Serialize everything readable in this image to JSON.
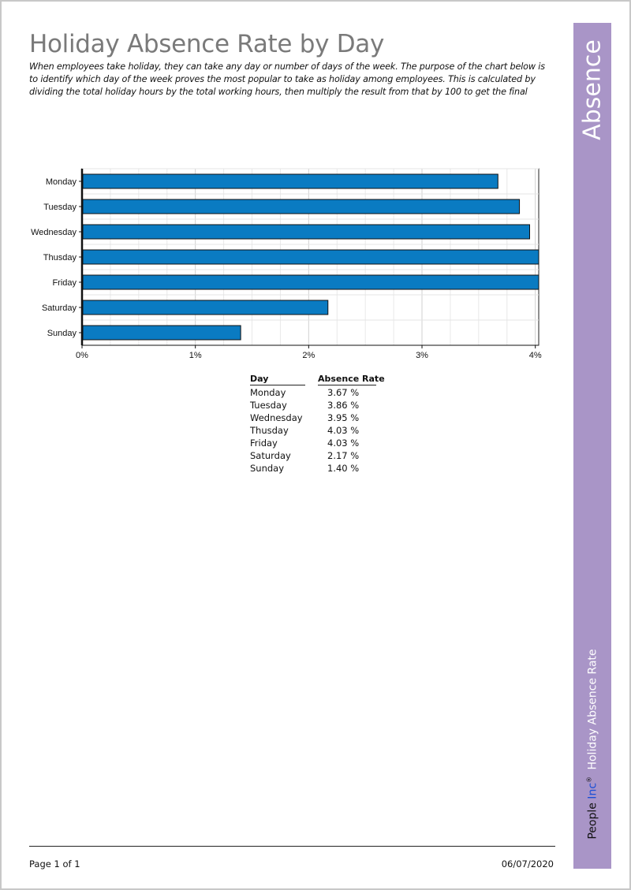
{
  "report": {
    "title": "Holiday Absence Rate by Day",
    "intro": "When employees take holiday, they can take any day or number of days of the week. The purpose of the chart below is to identify which day of the week proves the most popular to take as holiday among employees. This is calculated by dividing the total holiday hours by the total working hours, then multiply the result from that by 100 to get the final"
  },
  "chart_data": {
    "type": "bar",
    "orientation": "horizontal",
    "categories": [
      "Monday",
      "Tuesday",
      "Wednesday",
      "Thusday",
      "Friday",
      "Saturday",
      "Sunday"
    ],
    "values": [
      3.67,
      3.86,
      3.95,
      4.03,
      4.03,
      2.17,
      1.4
    ],
    "x_ticks": [
      "0%",
      "1%",
      "2%",
      "3%",
      "4%"
    ],
    "xlim": [
      0,
      4.03
    ],
    "grid": true,
    "bar_color": "#0a7bc2"
  },
  "table": {
    "headers": {
      "day": "Day",
      "rate": "Absence Rate"
    },
    "rows": [
      {
        "day": "Monday",
        "rate": "3.67 %"
      },
      {
        "day": "Tuesday",
        "rate": "3.86 %"
      },
      {
        "day": "Wednesday",
        "rate": "3.95 %"
      },
      {
        "day": "Thusday",
        "rate": "4.03 %"
      },
      {
        "day": "Friday",
        "rate": "4.03 %"
      },
      {
        "day": "Saturday",
        "rate": "2.17 %"
      },
      {
        "day": "Sunday",
        "rate": "1.40 %"
      }
    ]
  },
  "sidebar": {
    "section": "Absence",
    "brand_part1": "People",
    "brand_part2": "Inc",
    "brand_mark": "®",
    "report_name": "Holiday Absence Rate",
    "color": "#a995c7"
  },
  "footer": {
    "page": "Page 1 of 1",
    "date": "06/07/2020"
  }
}
